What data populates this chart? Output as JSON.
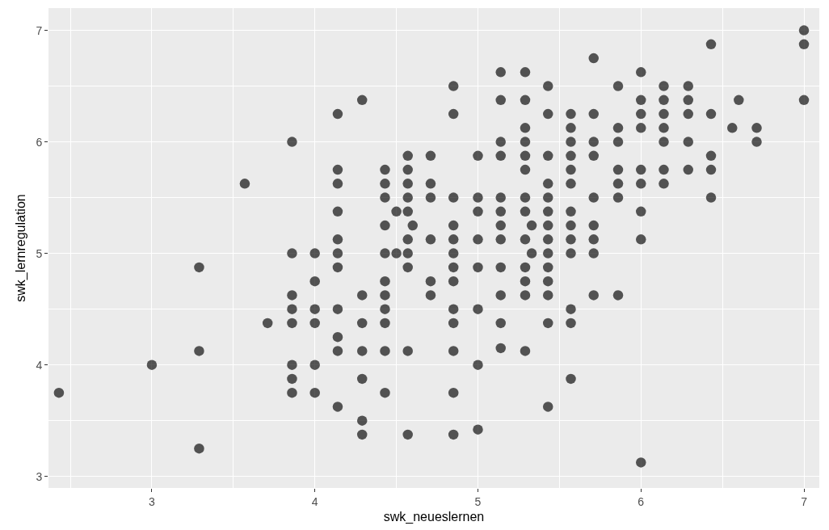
{
  "chart_data": {
    "type": "scatter",
    "xlabel": "swk_neueslernen",
    "ylabel": "swk_lernregulation",
    "xlim": [
      2.366,
      7.094
    ],
    "ylim": [
      2.896,
      7.2
    ],
    "xticks": [
      3,
      4,
      5,
      6,
      7
    ],
    "yticks": [
      3,
      4,
      5,
      6,
      7
    ],
    "grid": true,
    "marker": "circle",
    "series": [
      {
        "color": "#000000",
        "x": [
          2.43,
          3,
          3.29,
          3.29,
          3.29,
          3.57,
          3.71,
          3.86,
          3.86,
          3.86,
          3.86,
          3.86,
          3.86,
          3.86,
          3.86,
          4,
          4,
          4,
          4,
          4,
          4,
          4.14,
          4.14,
          4.14,
          4.14,
          4.14,
          4.14,
          4.14,
          4.14,
          4.14,
          4.14,
          4.14,
          4.29,
          4.29,
          4.29,
          4.29,
          4.29,
          4.29,
          4.29,
          4.43,
          4.43,
          4.43,
          4.43,
          4.43,
          4.43,
          4.43,
          4.43,
          4.43,
          4.43,
          4.43,
          4.5,
          4.5,
          4.57,
          4.57,
          4.57,
          4.57,
          4.57,
          4.57,
          4.57,
          4.57,
          4.57,
          4.57,
          4.6,
          4.71,
          4.71,
          4.71,
          4.71,
          4.71,
          4.71,
          4.85,
          4.85,
          4.85,
          4.85,
          4.85,
          4.85,
          4.85,
          4.85,
          4.85,
          4.85,
          4.85,
          4.85,
          4.85,
          5,
          5,
          5,
          5,
          5,
          5,
          5,
          5,
          5.14,
          5.14,
          5.14,
          5.14,
          5.14,
          5.14,
          5.14,
          5.14,
          5.14,
          5.14,
          5.14,
          5.14,
          5.29,
          5.29,
          5.29,
          5.29,
          5.29,
          5.29,
          5.29,
          5.29,
          5.29,
          5.29,
          5.29,
          5.29,
          5.29,
          5.33,
          5.33,
          5.43,
          5.43,
          5.43,
          5.43,
          5.43,
          5.43,
          5.43,
          5.43,
          5.43,
          5.43,
          5.43,
          5.43,
          5.43,
          5.43,
          5.57,
          5.57,
          5.57,
          5.57,
          5.57,
          5.57,
          5.57,
          5.57,
          5.57,
          5.57,
          5.57,
          5.57,
          5.57,
          5.71,
          5.71,
          5.71,
          5.71,
          5.71,
          5.71,
          5.71,
          5.71,
          5.71,
          5.86,
          5.86,
          5.86,
          5.86,
          5.86,
          5.86,
          5.86,
          6,
          6,
          6,
          6,
          6,
          6,
          6,
          6,
          6,
          6.14,
          6.14,
          6.14,
          6.14,
          6.14,
          6.14,
          6.14,
          6.29,
          6.29,
          6.29,
          6.29,
          6.29,
          6.43,
          6.43,
          6.43,
          6.43,
          6.43,
          6.56,
          6.6,
          6.71,
          6.71,
          7,
          7,
          7
        ],
        "values": [
          3.75,
          4,
          4.875,
          4.125,
          3.25,
          5.625,
          4.375,
          6,
          5,
          4.625,
          4.5,
          4.375,
          4,
          3.875,
          3.75,
          5,
          4.75,
          4.5,
          4.375,
          4,
          3.75,
          6.25,
          5.75,
          5.625,
          5.375,
          5.125,
          5,
          4.875,
          4.5,
          4.25,
          4.125,
          3.625,
          6.375,
          4.625,
          4.375,
          4.125,
          3.875,
          3.5,
          3.375,
          5.75,
          5.625,
          5.5,
          5.25,
          5,
          4.75,
          4.625,
          4.5,
          4.375,
          4.125,
          3.75,
          5.375,
          5,
          5.875,
          5.75,
          5.625,
          5.5,
          5.375,
          5.125,
          5,
          4.875,
          4.125,
          3.375,
          5.25,
          5.875,
          5.625,
          5.5,
          5.125,
          4.75,
          4.625,
          6.5,
          6.25,
          5.5,
          5.25,
          5.125,
          5,
          4.875,
          4.75,
          4.5,
          4.375,
          4.125,
          3.75,
          3.375,
          5.875,
          5.5,
          5.375,
          5.125,
          4.875,
          4.5,
          4,
          3.42,
          6.625,
          6.375,
          6,
          5.875,
          5.5,
          5.375,
          5.25,
          5.125,
          4.875,
          4.625,
          4.375,
          4.15,
          6.625,
          6.375,
          6.125,
          6,
          5.875,
          5.75,
          5.5,
          5.375,
          5.125,
          4.875,
          4.75,
          4.625,
          4.125,
          5.25,
          5,
          6.5,
          6.25,
          5.875,
          5.625,
          5.5,
          5.375,
          5.25,
          5.125,
          5,
          4.875,
          4.75,
          4.625,
          4.375,
          3.625,
          6.25,
          6.125,
          6,
          5.875,
          5.75,
          5.625,
          5.375,
          5.25,
          5.125,
          5,
          4.5,
          4.375,
          3.875,
          6.75,
          6.25,
          6,
          5.875,
          5.5,
          5.25,
          5.125,
          5,
          4.625,
          6.5,
          6.125,
          6,
          5.75,
          5.625,
          5.5,
          4.625,
          6.625,
          6.375,
          6.25,
          6.125,
          5.75,
          5.625,
          5.375,
          5.125,
          3.125,
          6.5,
          6.375,
          6.25,
          6.125,
          6,
          5.75,
          5.625,
          6.5,
          6.375,
          6.25,
          6,
          5.75,
          6.875,
          6.25,
          5.875,
          5.75,
          5.5,
          6.125,
          6.375,
          6.125,
          6,
          7,
          6.875,
          6.375
        ]
      }
    ]
  }
}
